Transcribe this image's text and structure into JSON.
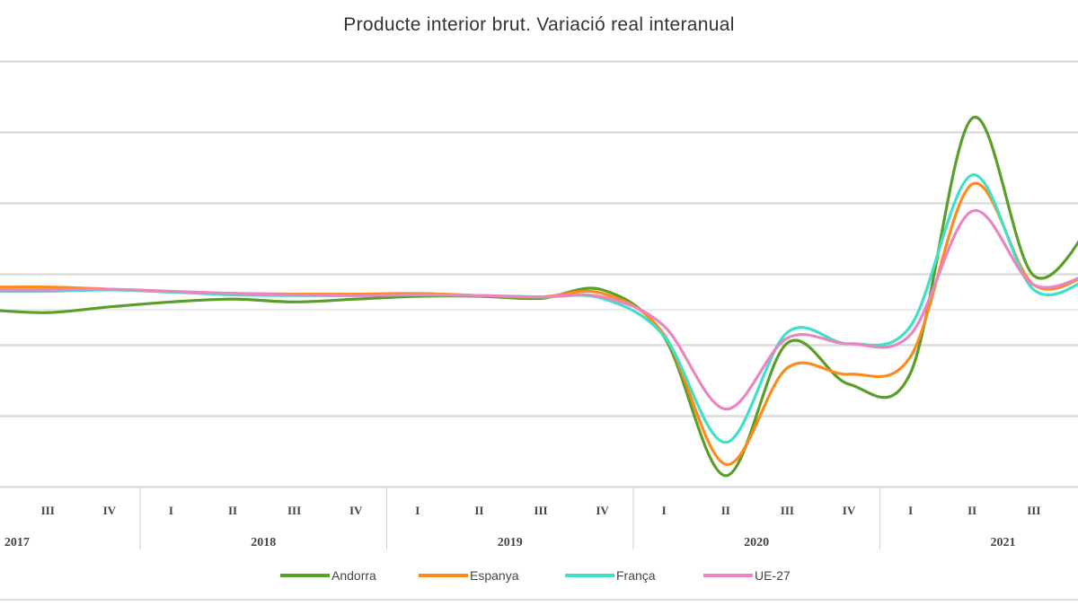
{
  "chart_data": {
    "type": "line",
    "title": "Producte interior brut. Variació real interanual",
    "xlabel": "",
    "ylabel": "",
    "ylim": [
      -25,
      35
    ],
    "grid": true,
    "legend_position": "bottom",
    "quarters": [
      "I",
      "II",
      "III",
      "IV",
      "I",
      "II",
      "III",
      "IV",
      "I",
      "II",
      "III",
      "IV",
      "I",
      "II",
      "III",
      "IV",
      "I",
      "II",
      "III",
      "IV"
    ],
    "years": [
      "2017",
      "2018",
      "2019",
      "2020",
      "2021"
    ],
    "series": [
      {
        "name": "Andorra",
        "color": "#5a9e2a",
        "values": [
          0.6,
          0.0,
          -0.4,
          0.4,
          1.1,
          1.5,
          1.1,
          1.5,
          1.9,
          1.9,
          1.6,
          2.8,
          -3.8,
          -23.4,
          -4.7,
          -10.5,
          -8.9,
          27.0,
          4.8,
          13.0
        ]
      },
      {
        "name": "Espanya",
        "color": "#ff8a1c",
        "values": [
          3.4,
          3.2,
          3.2,
          2.9,
          2.5,
          2.3,
          2.2,
          2.2,
          2.3,
          2.0,
          1.8,
          2.3,
          -3.5,
          -21.8,
          -8.2,
          -9.1,
          -6.6,
          17.7,
          3.5,
          5.5
        ]
      },
      {
        "name": "França",
        "color": "#3fe0c5",
        "values": [
          2.6,
          2.6,
          2.6,
          2.8,
          2.5,
          2.1,
          2.0,
          2.0,
          2.1,
          2.0,
          1.8,
          1.6,
          -3.7,
          -18.7,
          -3.2,
          -4.8,
          -2.3,
          19.0,
          2.8,
          5.0
        ]
      },
      {
        "name": "UE-27",
        "color": "#e985c3",
        "values": [
          2.8,
          2.8,
          2.8,
          2.9,
          2.6,
          2.3,
          2.1,
          2.0,
          2.1,
          2.0,
          1.8,
          1.8,
          -2.3,
          -14.0,
          -4.0,
          -4.8,
          -3.5,
          13.9,
          3.5,
          5.5
        ]
      }
    ]
  }
}
